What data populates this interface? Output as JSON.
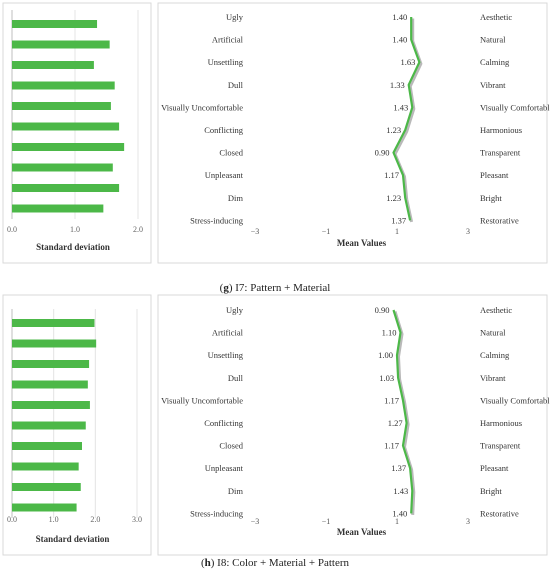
{
  "panels": [
    {
      "id": "g",
      "caption_letter": "g",
      "caption_rest": ") I7: Pattern + Material",
      "sd_chart": {
        "type": "bar",
        "orientation": "horizontal",
        "values": [
          1.35,
          1.55,
          1.3,
          1.63,
          1.57,
          1.7,
          1.78,
          1.6,
          1.7,
          1.45
        ],
        "xlim": [
          0,
          2.0
        ],
        "ticks": [
          "0.0",
          "1.0",
          "2.0"
        ],
        "tick_values": [
          0,
          1,
          2
        ],
        "xlabel": "Standard deviation",
        "color": "#4cb848"
      },
      "mean_chart": {
        "type": "line",
        "left_labels": [
          "Ugly",
          "Artificial",
          "Unsettling",
          "Dull",
          "Visually Uncomfortable",
          "Conflicting",
          "Closed",
          "Unpleasant",
          "Dim",
          "Stress-inducing"
        ],
        "right_labels": [
          "Aesthetic",
          "Natural",
          "Calming",
          "Vibrant",
          "Visually Comfortable",
          "Harmonious",
          "Transparent",
          "Pleasant",
          "Bright",
          "Restorative"
        ],
        "values": [
          1.4,
          1.4,
          1.63,
          1.33,
          1.43,
          1.23,
          0.9,
          1.17,
          1.23,
          1.37
        ],
        "value_labels": [
          "1.40",
          "1.40",
          "1.63",
          "1.33",
          "1.43",
          "1.23",
          "0.90",
          "1.17",
          "1.23",
          "1.37"
        ],
        "xlim": [
          -3,
          3
        ],
        "ticks": [
          "−3",
          "−1",
          "1",
          "3"
        ],
        "tick_values": [
          -3,
          -1,
          1,
          3
        ],
        "xlabel": "Mean Values",
        "color": "#4cb848"
      }
    },
    {
      "id": "h",
      "caption_letter": "h",
      "caption_rest": ") I8: Color + Material + Pattern",
      "sd_chart": {
        "type": "bar",
        "orientation": "horizontal",
        "values": [
          1.98,
          2.02,
          1.85,
          1.82,
          1.87,
          1.77,
          1.68,
          1.6,
          1.65,
          1.55
        ],
        "xlim": [
          0,
          3.0
        ],
        "ticks": [
          "0.0",
          "1.0",
          "2.0",
          "3.0"
        ],
        "tick_values": [
          0,
          1,
          2,
          3
        ],
        "xlabel": "Standard deviation",
        "color": "#4cb848"
      },
      "mean_chart": {
        "type": "line",
        "left_labels": [
          "Ugly",
          "Artificial",
          "Unsettling",
          "Dull",
          "Visually Uncomfortable",
          "Conflicting",
          "Closed",
          "Unpleasant",
          "Dim",
          "Stress-inducing"
        ],
        "right_labels": [
          "Aesthetic",
          "Natural",
          "Calming",
          "Vibrant",
          "Visually Comfortable",
          "Harmonious",
          "Transparent",
          "Pleasant",
          "Bright",
          "Restorative"
        ],
        "values": [
          0.9,
          1.1,
          1.0,
          1.03,
          1.17,
          1.27,
          1.17,
          1.37,
          1.43,
          1.4
        ],
        "value_labels": [
          "0.90",
          "1.10",
          "1.00",
          "1.03",
          "1.17",
          "1.27",
          "1.17",
          "1.37",
          "1.43",
          "1.40"
        ],
        "xlim": [
          -3,
          3
        ],
        "ticks": [
          "−3",
          "−1",
          "1",
          "3"
        ],
        "tick_values": [
          -3,
          -1,
          1,
          3
        ],
        "xlabel": "Mean Values",
        "color": "#4cb848"
      }
    }
  ]
}
